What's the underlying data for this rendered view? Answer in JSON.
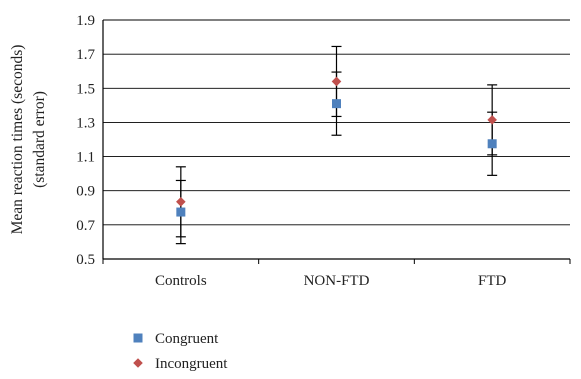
{
  "chart_data": {
    "type": "scatter",
    "title": "",
    "xlabel": "",
    "ylabel_lines": [
      "Mean reaction times (seconds)",
      "(standard error)"
    ],
    "categories": [
      "Controls",
      "NON-FTD",
      "FTD"
    ],
    "ylim": [
      0.5,
      1.9
    ],
    "yticks": [
      0.5,
      0.7,
      0.9,
      1.1,
      1.3,
      1.5,
      1.7,
      1.9
    ],
    "ytick_labels": [
      "0.5",
      "0.7",
      "0.9",
      "1.1",
      "1.3",
      "1.5",
      "1.7",
      "1.9"
    ],
    "grid": "horizontal",
    "legend_position": "bottom-left",
    "series": [
      {
        "name": "Congruent",
        "marker": "square",
        "color": "#4f81bd",
        "values": [
          0.775,
          1.41,
          1.175
        ],
        "errors": [
          0.185,
          0.185,
          0.185
        ]
      },
      {
        "name": "Incongruent",
        "marker": "diamond",
        "color": "#c0504d",
        "values": [
          0.835,
          1.54,
          1.315
        ],
        "errors": [
          0.205,
          0.205,
          0.205
        ]
      }
    ]
  }
}
